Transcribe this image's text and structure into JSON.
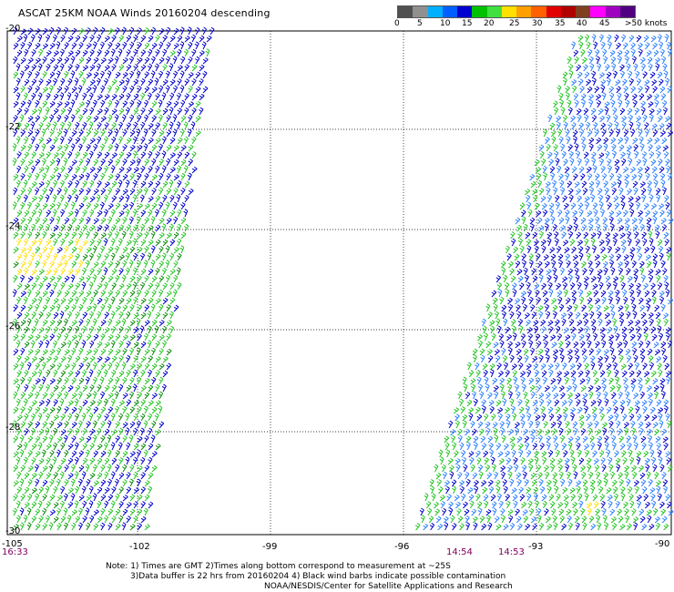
{
  "title": "ASCAT 25KM NOAA Winds 20160204 descending",
  "legend": {
    "colors": [
      "#505050",
      "#909090",
      "#00b0ff",
      "#0060ff",
      "#0000d0",
      "#00c000",
      "#40e040",
      "#ffe000",
      "#ffa000",
      "#ff6000",
      "#e00000",
      "#b00000",
      "#804020",
      "#ff00ff",
      "#a000c0",
      "#500080"
    ],
    "labels": [
      "0",
      "5",
      "10",
      "15",
      "20",
      "25",
      "30",
      "35",
      "40",
      "45",
      ">50 knots"
    ]
  },
  "axes": {
    "y_ticks": [
      "-20",
      "-22",
      "-24",
      "-26",
      "-28",
      "-30"
    ],
    "x_ticks": [
      "-105",
      "-102",
      "-99",
      "-96",
      "-93",
      "-90"
    ]
  },
  "swath_times": [
    "16:33",
    "14:54",
    "14:53"
  ],
  "notes": {
    "line1": "Note: 1) Times are GMT 2)Times along bottom correspond to measurement at ~25S",
    "line2": "3)Data buffer is 22 hrs from 20160204 4) Black wind barbs indicate possible contamination",
    "line3": "NOAA/NESDIS/Center for Satellite Applications and Research"
  },
  "map_data": {
    "lon_range": [
      -105,
      -90
    ],
    "lat_range": [
      -30,
      -20
    ],
    "swaths": [
      {
        "name": "west",
        "time": "16:33",
        "dominant_speed_knots": "15-20",
        "notable": "yellow 20-25 kt patch near 24.5S 104W"
      },
      {
        "name": "east",
        "time": "14:54 / 14:53",
        "dominant_speed_knots": "10-15",
        "notable": "green 15-20 kt near 93-91W in south"
      }
    ]
  }
}
